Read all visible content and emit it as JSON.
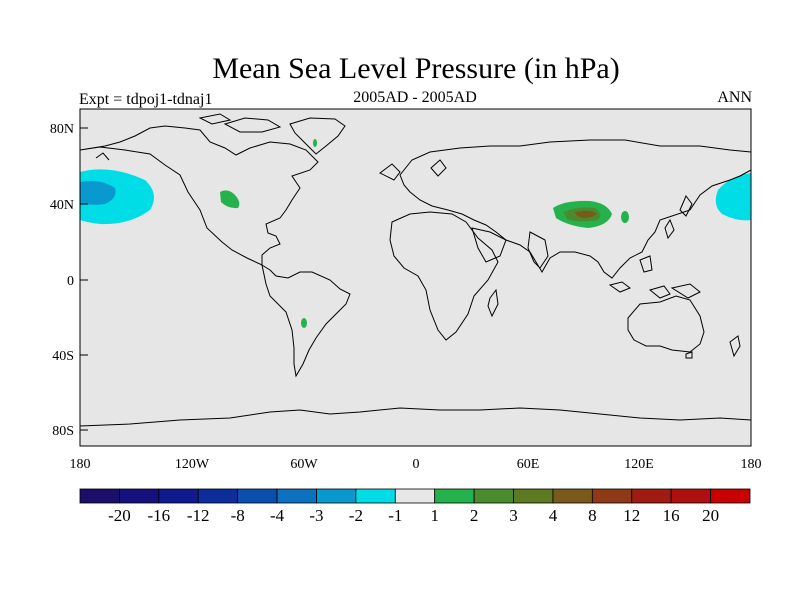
{
  "header": {
    "title": "Mean Sea Level Pressure (in hPa)",
    "experiment": "Expt = tdpoj1-tdnaj1",
    "period": "2005AD - 2005AD",
    "season": "ANN"
  },
  "axes": {
    "lat_labels": [
      "80N",
      "40N",
      "0",
      "40S",
      "80S"
    ],
    "lon_labels": [
      "180",
      "120W",
      "60W",
      "0",
      "60E",
      "120E",
      "180"
    ]
  },
  "colorbar": {
    "labels": [
      "-20",
      "-16",
      "-12",
      "-8",
      "-4",
      "-3",
      "-2",
      "-1",
      "1",
      "2",
      "3",
      "4",
      "8",
      "12",
      "16",
      "20"
    ],
    "colors": [
      "#1b0f6b",
      "#15107e",
      "#101a8f",
      "#0c2e9c",
      "#0b4fae",
      "#0c72c0",
      "#0a99cf",
      "#00dde6",
      "#e6e6e6",
      "#23b24b",
      "#4a8c2d",
      "#5c7a22",
      "#7a5a1a",
      "#8f3a16",
      "#a01c12",
      "#b00f0f",
      "#c80000"
    ]
  },
  "colors": {
    "background": "#e6e6e6",
    "coast": "#000000",
    "positive_anomaly": "#23b24b",
    "positive_strong": "#4a8c2d",
    "negative_anomaly": "#00dde6",
    "negative_strong": "#0a99cf"
  }
}
